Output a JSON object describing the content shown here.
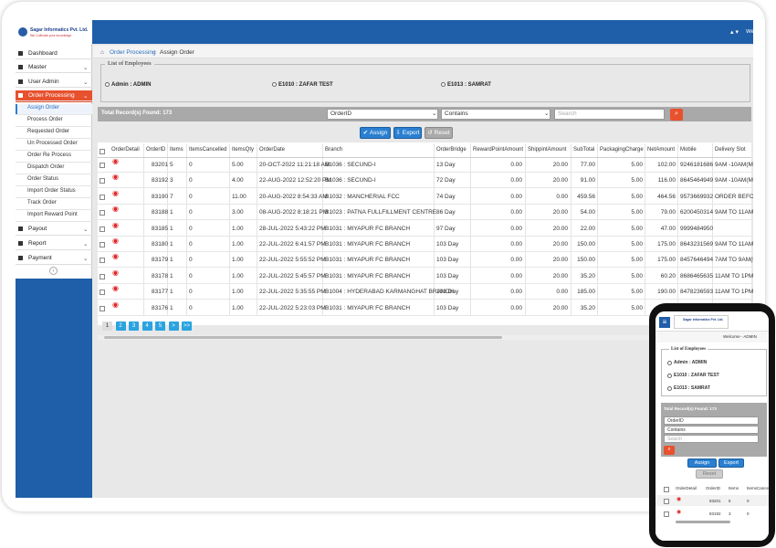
{
  "brand": {
    "name": "Sagar Informatics Pvt. Ltd.",
    "tagline": "We Cultivate your knowledge"
  },
  "header": {
    "user": "Welcome - ADMIN"
  },
  "sidebar": {
    "items": [
      "Dashboard",
      "Master",
      "User Admin",
      "Order Processing"
    ],
    "submenu": [
      "Assign Order",
      "Process Order",
      "Requested Order",
      "Un Processed Order",
      "Order Re Process",
      "Dispatch Order",
      "Order Status",
      "Import Order Status",
      "Track Order",
      "Import Reward Point"
    ],
    "bottom_items": [
      "Payout",
      "Report",
      "Payment"
    ]
  },
  "breadcrumb": [
    "Order Processing",
    "Assign Order"
  ],
  "employees": {
    "legend": "List of Employees",
    "options": [
      "Admin : ADMIN",
      "E1010 : ZAFAR TEST",
      "E1013 : SAMRAT"
    ]
  },
  "toolbar": {
    "total": "Total Record(s) Found: 173",
    "field": "OrderID",
    "operator": "Contains",
    "search_placeholder": "Search"
  },
  "buttons": [
    "Assign",
    "Export",
    "Reset"
  ],
  "table": {
    "columns": [
      "OrderDetail",
      "OrderID",
      "Items",
      "ItemsCancelled",
      "ItemsQty",
      "OrderDate",
      "Branch",
      "OrderBridge",
      "RewardPointAmount",
      "ShippintAmount",
      "SubTotal",
      "PackagingCharge",
      "NetAmount",
      "Mobile",
      "Delivery Slot"
    ],
    "rows": [
      [
        "83201",
        "5",
        "0",
        "5.00",
        "20-OCT-2022 11:21:18 AM",
        "B1036 : SECUND-I",
        "13 Day",
        "0.00",
        "20.00",
        "77.00",
        "5.00",
        "102.00",
        "9246181686",
        "9AM -10AM(MO"
      ],
      [
        "83192",
        "3",
        "0",
        "4.00",
        "22-AUG-2022 12:52:20 PM",
        "B1036 : SECUND-I",
        "72 Day",
        "0.00",
        "20.00",
        "91.00",
        "5.00",
        "116.00",
        "8645464949",
        "9AM -10AM(MO"
      ],
      [
        "83190",
        "7",
        "0",
        "11.00",
        "20-AUG-2022 8:54:33 AM",
        "B1032 : MANCHERIAL FCC",
        "74 Day",
        "0.00",
        "0.00",
        "459.56",
        "5.00",
        "464.56",
        "9573669932",
        "ORDER BEFOR"
      ],
      [
        "83188",
        "1",
        "0",
        "3.00",
        "08-AUG-2022 8:18:21 PM",
        "B1023 : PATNA FULLFILLMENT CENTRE",
        "86 Day",
        "0.00",
        "20.00",
        "54.00",
        "5.00",
        "79.00",
        "6200450314",
        "9AM TO 11AM(M"
      ],
      [
        "83185",
        "1",
        "0",
        "1.00",
        "28-JUL-2022 5:43:22 PM",
        "B1031 : MIYAPUR FC BRANCH",
        "97 Day",
        "0.00",
        "20.00",
        "22.00",
        "5.00",
        "47.00",
        "9999484950",
        null
      ],
      [
        "83180",
        "1",
        "0",
        "1.00",
        "22-JUL-2022 6:41:57 PM",
        "B1031 : MIYAPUR FC BRANCH",
        "103 Day",
        "0.00",
        "20.00",
        "150.00",
        "5.00",
        "175.00",
        "8643231569",
        "9AM TO 11AM(M"
      ],
      [
        "83179",
        "1",
        "0",
        "1.00",
        "22-JUL-2022 5:55:52 PM",
        "B1031 : MIYAPUR FC BRANCH",
        "103 Day",
        "0.00",
        "20.00",
        "150.00",
        "5.00",
        "175.00",
        "8457646494",
        "7AM TO 9AM(N"
      ],
      [
        "83178",
        "1",
        "0",
        "1.00",
        "22-JUL-2022 5:45:57 PM",
        "B1031 : MIYAPUR FC BRANCH",
        "103 Day",
        "0.00",
        "20.00",
        "35.20",
        "5.00",
        "60.20",
        "8686465635",
        "11AM TO 1PM("
      ],
      [
        "83177",
        "1",
        "0",
        "1.00",
        "22-JUL-2022 5:35:55 PM",
        "B1004 : HYDERABAD KARMANGHAT BRANCH",
        "103 Day",
        "0.00",
        "0.00",
        "185.00",
        "5.00",
        "190.00",
        "8478236593",
        "11AM TO 1PM("
      ],
      [
        "83176",
        "1",
        "0",
        "1.00",
        "22-JUL-2022 5:23:03 PM",
        "B1031 : MIYAPUR FC BRANCH",
        "103 Day",
        "0.00",
        "20.00",
        "35.20",
        "5.00",
        "60.20",
        "9848560574",
        "11AM TO 1PM("
      ]
    ]
  },
  "pagination": [
    "1",
    "2",
    "3",
    "4",
    "5",
    ">",
    ">>"
  ]
}
